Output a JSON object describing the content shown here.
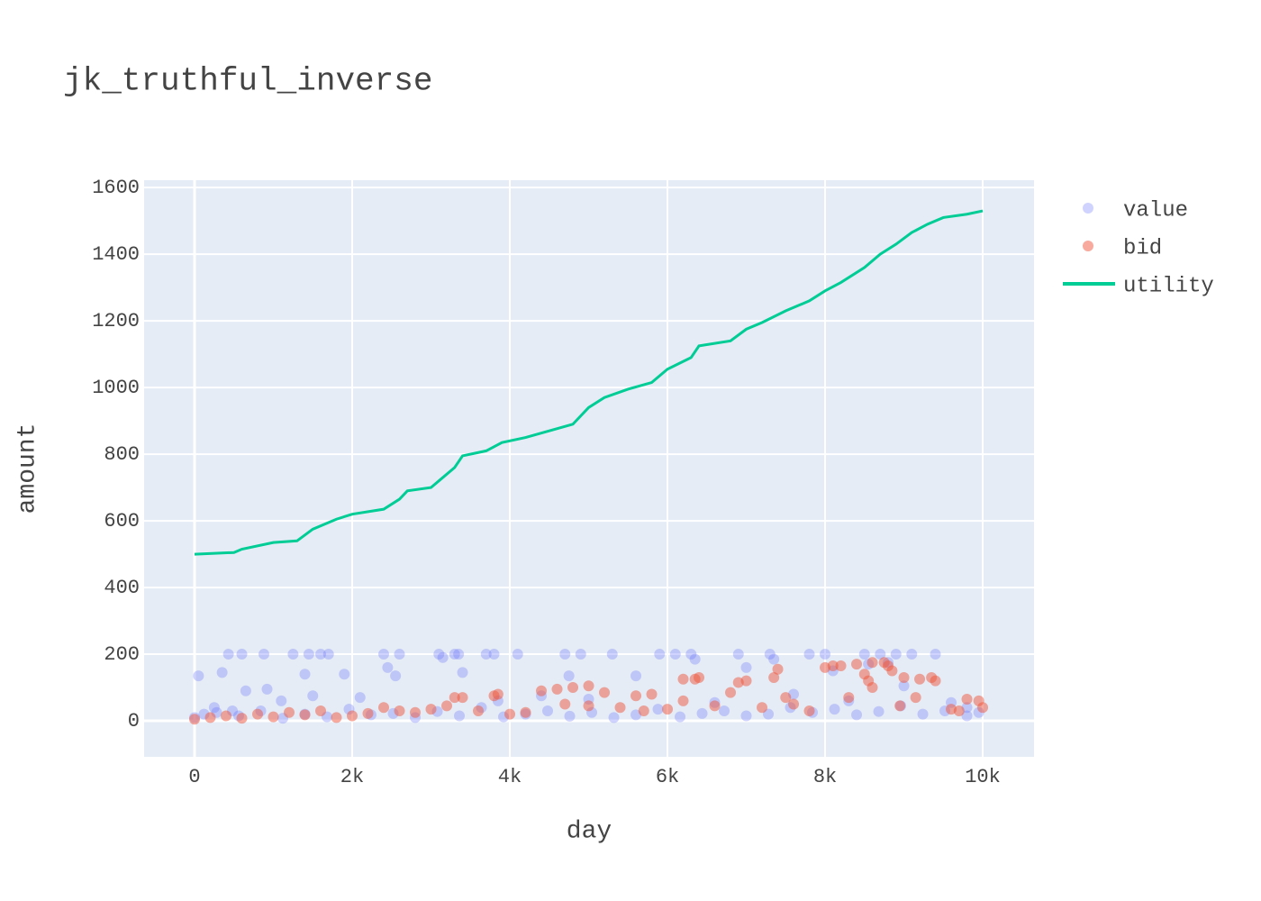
{
  "chart_data": {
    "type": "scatter",
    "title": "jk_truthful_inverse",
    "x_label": "day",
    "y_label": "amount",
    "xlim": [
      -640,
      10651
    ],
    "ylim": [
      -108,
      1622
    ],
    "xticks": [
      0,
      {
        "value": 2000,
        "label": "2k"
      },
      {
        "value": 4000,
        "label": "4k"
      },
      {
        "value": 6000,
        "label": "6k"
      },
      {
        "value": 8000,
        "label": "8k"
      },
      {
        "value": 10000,
        "label": "10k"
      }
    ],
    "yticks": [
      0,
      200,
      400,
      600,
      800,
      1000,
      1200,
      1400,
      1600
    ],
    "grid": true,
    "legend": "right",
    "series": [
      {
        "name": "value",
        "mode": "markers",
        "color": "#636efa",
        "opacity": 0.3,
        "x": [
          50,
          120,
          250,
          350,
          430,
          480,
          600,
          650,
          880,
          920,
          1100,
          1250,
          1400,
          1450,
          1500,
          1600,
          1700,
          1900,
          2100,
          2400,
          2450,
          2550,
          2600,
          3100,
          3150,
          3300,
          3350,
          3400,
          3700,
          3800,
          3850,
          4100,
          4400,
          4700,
          4750,
          4900,
          5000,
          5300,
          5600,
          5900,
          6100,
          6300,
          6350,
          6600,
          6900,
          7000,
          7300,
          7350,
          7600,
          7800,
          8000,
          8100,
          8300,
          8500,
          8550,
          8700,
          8800,
          8900,
          9000,
          9100,
          9400,
          9600,
          9800,
          9950,
          0,
          280,
          560,
          840,
          1120,
          1400,
          1680,
          1960,
          2240,
          2520,
          2800,
          3080,
          3360,
          3640,
          3920,
          4200,
          4480,
          4760,
          5040,
          5320,
          5600,
          5880,
          6160,
          6440,
          6720,
          7000,
          7280,
          7560,
          7840,
          8120,
          8400,
          8680,
          8960,
          9240,
          9520,
          9800
        ],
        "values": [
          135,
          20,
          40,
          145,
          200,
          30,
          200,
          90,
          200,
          95,
          60,
          200,
          140,
          200,
          75,
          200,
          200,
          140,
          70,
          200,
          160,
          135,
          200,
          200,
          190,
          200,
          200,
          145,
          200,
          200,
          60,
          200,
          75,
          200,
          135,
          200,
          65,
          200,
          135,
          200,
          200,
          200,
          185,
          55,
          200,
          160,
          200,
          185,
          80,
          200,
          200,
          150,
          60,
          200,
          170,
          200,
          175,
          200,
          105,
          200,
          200,
          55,
          40,
          25,
          10,
          25,
          15,
          30,
          8,
          20,
          12,
          35,
          18,
          22,
          10,
          28,
          15,
          40,
          12,
          20,
          30,
          14,
          25,
          10,
          18,
          35,
          12,
          22,
          30,
          15,
          20,
          40,
          25,
          35,
          18,
          28,
          45,
          20,
          30,
          15
        ]
      },
      {
        "name": "bid",
        "mode": "markers",
        "color": "#ef553b",
        "opacity": 0.5,
        "x": [
          0,
          200,
          400,
          600,
          800,
          1000,
          1200,
          1400,
          1600,
          1800,
          2000,
          2200,
          2400,
          2600,
          2800,
          3000,
          3200,
          3400,
          3600,
          3800,
          4000,
          4200,
          4400,
          4600,
          4800,
          5000,
          5200,
          5400,
          5600,
          5800,
          6000,
          6200,
          6400,
          6600,
          6800,
          7000,
          7200,
          7400,
          7600,
          7800,
          8000,
          8200,
          8400,
          8600,
          8800,
          9000,
          9200,
          9400,
          9600,
          9800,
          10000,
          3300,
          3850,
          4700,
          5000,
          5700,
          6200,
          6350,
          6900,
          7350,
          7500,
          8100,
          8300,
          8500,
          8550,
          8600,
          8750,
          8850,
          8950,
          9150,
          9350,
          9700,
          9950
        ],
        "values": [
          5,
          10,
          15,
          8,
          20,
          12,
          25,
          18,
          30,
          10,
          15,
          22,
          40,
          30,
          25,
          35,
          45,
          70,
          30,
          75,
          20,
          25,
          90,
          95,
          100,
          105,
          85,
          40,
          75,
          80,
          35,
          125,
          130,
          45,
          85,
          120,
          40,
          155,
          50,
          30,
          160,
          165,
          170,
          175,
          165,
          130,
          125,
          120,
          35,
          65,
          40,
          70,
          80,
          50,
          45,
          30,
          60,
          125,
          115,
          130,
          70,
          165,
          70,
          140,
          120,
          100,
          175,
          150,
          45,
          70,
          130,
          30,
          60
        ]
      },
      {
        "name": "utility",
        "mode": "lines",
        "color": "#00cc96",
        "x": [
          0,
          500,
          600,
          1000,
          1300,
          1500,
          1800,
          2000,
          2400,
          2600,
          2700,
          3000,
          3100,
          3300,
          3400,
          3700,
          3900,
          4200,
          4500,
          4800,
          5000,
          5200,
          5500,
          5800,
          6000,
          6300,
          6400,
          6800,
          7000,
          7200,
          7500,
          7800,
          8000,
          8200,
          8500,
          8700,
          8900,
          9100,
          9300,
          9500,
          9800,
          10000
        ],
        "values": [
          500,
          505,
          515,
          535,
          540,
          575,
          605,
          620,
          635,
          665,
          690,
          700,
          720,
          760,
          795,
          810,
          835,
          850,
          870,
          890,
          940,
          970,
          995,
          1015,
          1055,
          1090,
          1125,
          1140,
          1175,
          1195,
          1230,
          1260,
          1290,
          1315,
          1360,
          1400,
          1430,
          1465,
          1490,
          1510,
          1520,
          1530
        ]
      }
    ]
  }
}
